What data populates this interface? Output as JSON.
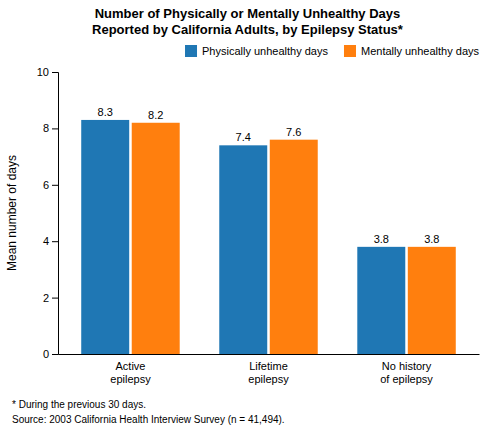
{
  "chart_data": {
    "type": "bar",
    "title": "Number of Physically or Mentally Unhealthy Days\nReported by California Adults, by Epilepsy Status*",
    "y_label": "Mean number of days",
    "categories": [
      "Active\nepilepsy",
      "Lifetime\nepilepsy",
      "No history\nof epilepsy"
    ],
    "series": [
      {
        "name": "Physically unhealthy days",
        "values": [
          8.3,
          7.4,
          3.8
        ]
      },
      {
        "name": "Mentally unhealthy days",
        "values": [
          8.2,
          7.6,
          3.8
        ]
      }
    ],
    "ylim": [
      0,
      10
    ],
    "yticks": [
      0,
      2,
      4,
      6,
      8,
      10
    ],
    "data_labels": true,
    "legend": "upper right",
    "annotations": [
      "* During the previous 30 days.",
      "Source: 2003 California Health Interview Survey (n = 41,494)."
    ]
  }
}
